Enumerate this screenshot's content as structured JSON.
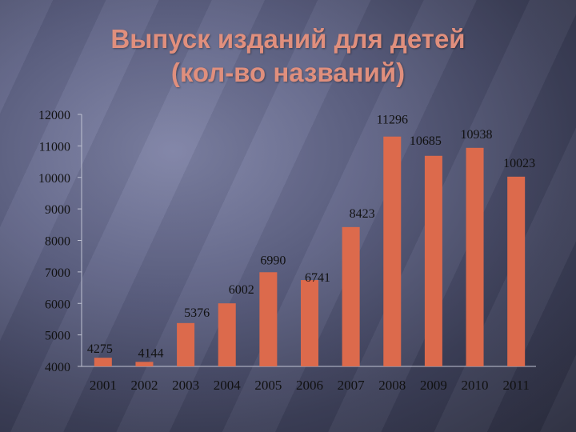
{
  "title": {
    "line1": "Выпуск изданий для детей",
    "line2": "(кол-во названий)"
  },
  "colors": {
    "bar": "#dc6a4c",
    "title": "#e08f7d",
    "axis": "#bfc2d2"
  },
  "chart_data": {
    "type": "bar",
    "title": "Выпуск изданий для детей (кол-во названий)",
    "categories": [
      "2001",
      "2002",
      "2003",
      "2004",
      "2005",
      "2006",
      "2007",
      "2008",
      "2009",
      "2010",
      "2011"
    ],
    "values": [
      4275,
      4144,
      5376,
      6002,
      6990,
      6741,
      8423,
      11296,
      10685,
      10938,
      10023
    ],
    "ylim": [
      4000,
      12000
    ],
    "yticks": [
      4000,
      5000,
      6000,
      7000,
      8000,
      9000,
      10000,
      11000,
      12000
    ],
    "xlabel": "",
    "ylabel": "",
    "grid": false,
    "legend": "none"
  }
}
